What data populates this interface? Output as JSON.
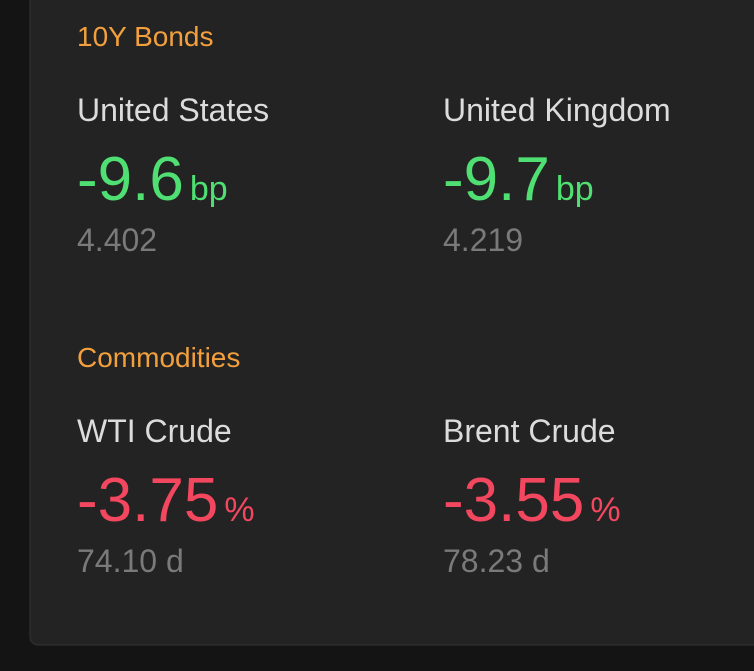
{
  "sections": [
    {
      "title": "10Y Bonds",
      "items": [
        {
          "name": "United States",
          "change": "-9.6",
          "unit": "bp",
          "value": "4.402"
        },
        {
          "name": "United Kingdom",
          "change": "-9.7",
          "unit": "bp",
          "value": "4.219"
        }
      ]
    },
    {
      "title": "Commodities",
      "items": [
        {
          "name": "WTI Crude",
          "change": "-3.75",
          "unit": "%",
          "value": "74.10 d"
        },
        {
          "name": "Brent Crude",
          "change": "-3.55",
          "unit": "%",
          "value": "78.23 d"
        }
      ]
    }
  ]
}
